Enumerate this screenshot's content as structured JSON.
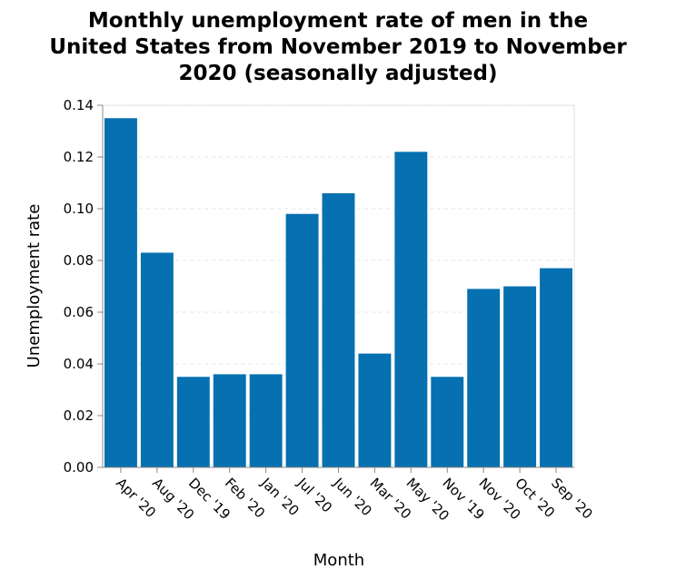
{
  "chart_data": {
    "type": "bar",
    "title_lines": [
      "Monthly unemployment rate of men in the",
      "United States from November 2019 to November",
      "2020 (seasonally adjusted)"
    ],
    "xlabel": "Month",
    "ylabel": "Unemployment rate",
    "categories": [
      "Apr '20",
      "Aug '20",
      "Dec '19",
      "Feb '20",
      "Jan '20",
      "Jul '20",
      "Jun '20",
      "Mar '20",
      "May '20",
      "Nov '19",
      "Nov '20",
      "Oct '20",
      "Sep '20"
    ],
    "values": [
      0.135,
      0.083,
      0.035,
      0.036,
      0.036,
      0.098,
      0.106,
      0.044,
      0.122,
      0.035,
      0.069,
      0.07,
      0.077
    ],
    "ylim": [
      0,
      0.14
    ],
    "yticks": [
      "0.00",
      "0.02",
      "0.04",
      "0.06",
      "0.08",
      "0.10",
      "0.12",
      "0.14"
    ],
    "grid": true,
    "bar_color": "#0670b0"
  }
}
